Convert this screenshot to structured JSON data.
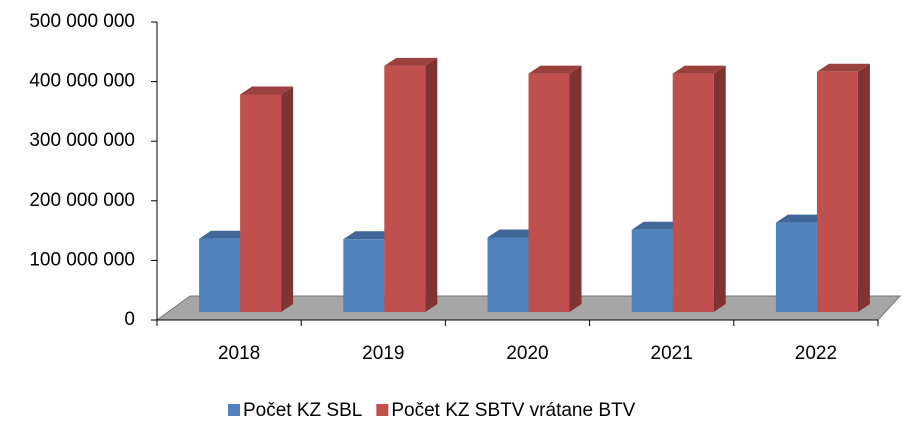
{
  "chart_data": {
    "type": "bar3d",
    "categories": [
      "2018",
      "2019",
      "2020",
      "2021",
      "2022"
    ],
    "series": [
      {
        "name": "Počet KZ SBL",
        "color": "#4f81bd",
        "values": [
          123000000,
          122000000,
          125000000,
          138000000,
          150000000
        ]
      },
      {
        "name": "Počet KZ SBTV vrátane BTV",
        "color": "#c0504d",
        "values": [
          365000000,
          413000000,
          400000000,
          400000000,
          403000000
        ]
      }
    ],
    "ylim": [
      0,
      500000000
    ],
    "yticks": [
      0,
      {
        "value": 100000000,
        "label": "100 000 000"
      },
      {
        "value": 200000000,
        "label": "200 000 000"
      },
      {
        "value": 300000000,
        "label": "300 000 000"
      },
      {
        "value": 400000000,
        "label": "400 000 000"
      },
      {
        "value": 500000000,
        "label": "500 000 000"
      }
    ],
    "legend": "bottom"
  }
}
